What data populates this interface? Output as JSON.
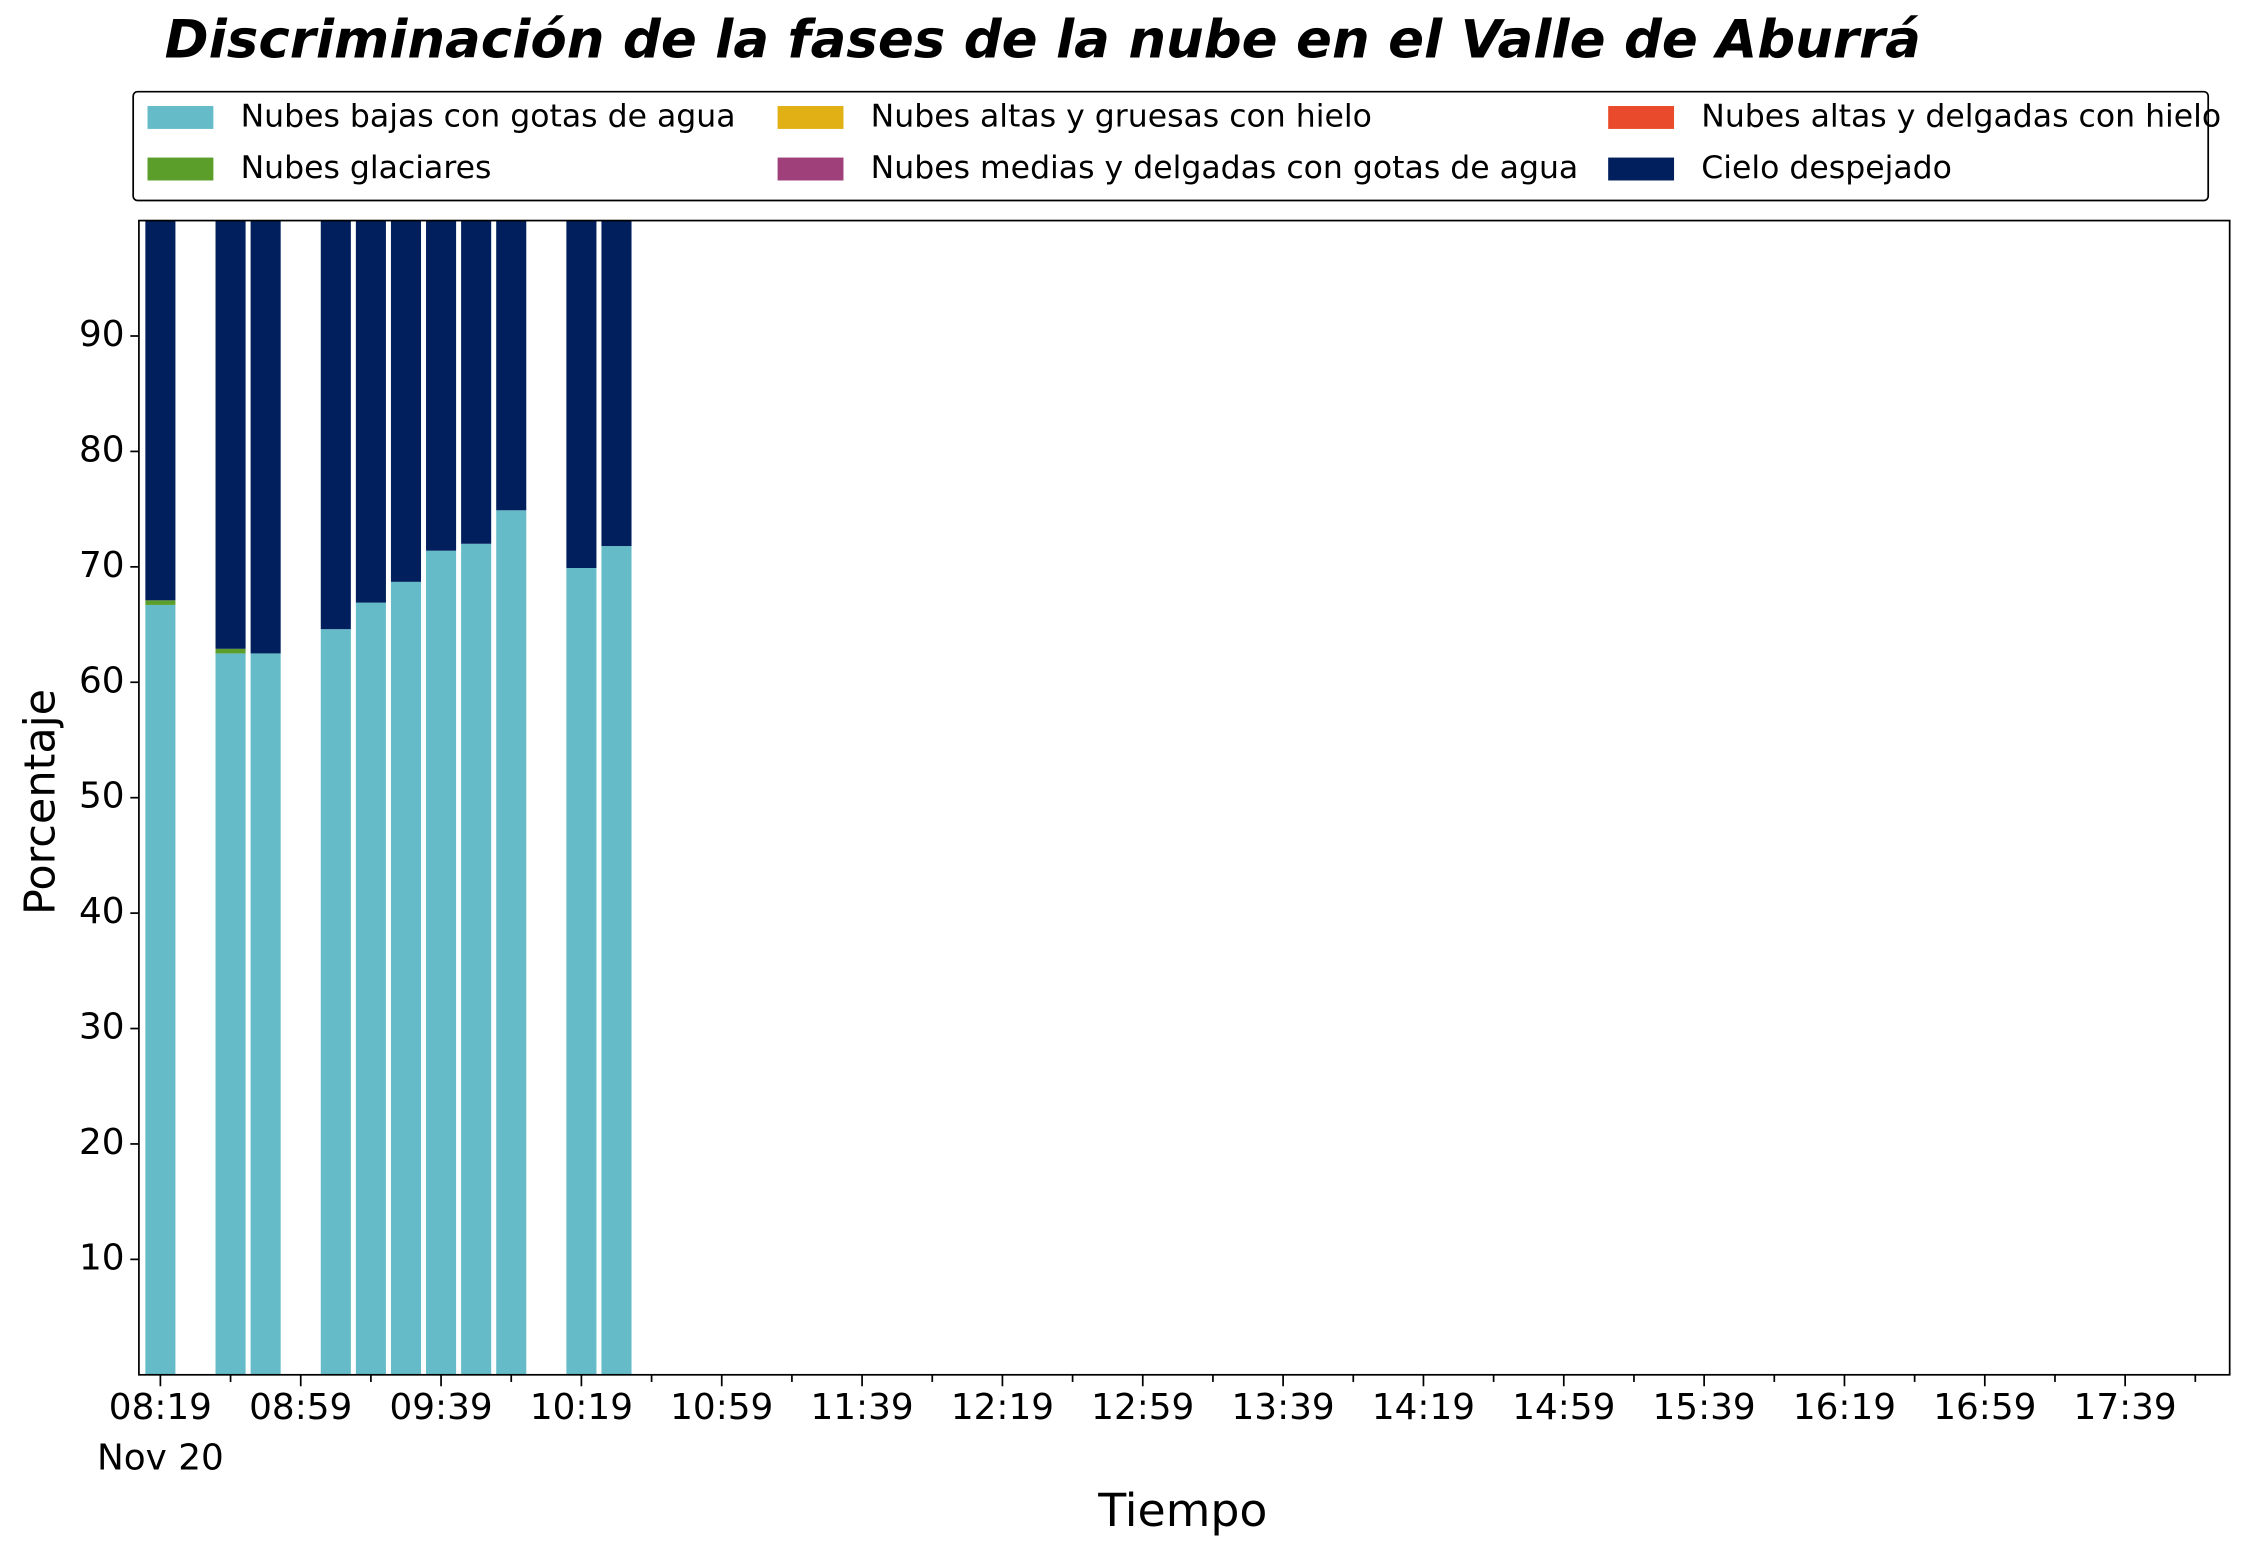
{
  "chart_data": {
    "type": "stacked_bar",
    "title": "Discriminación de la fases de la nube en el Valle de Aburrá",
    "x_label": "Tiempo",
    "y_label": "Porcentaje",
    "x_sublabel": "Nov 20",
    "categories": [
      "08:19",
      null,
      null,
      null,
      "08:59",
      null,
      null,
      null,
      "09:39",
      null,
      null,
      null,
      "10:19",
      null,
      null,
      null,
      "10:59",
      null,
      null,
      null,
      "11:39",
      null,
      null,
      null,
      "12:19",
      null,
      null,
      null,
      "12:59",
      null,
      null,
      null,
      "13:39",
      null,
      null,
      null,
      "14:19",
      null,
      null,
      null,
      "14:59",
      null,
      null,
      null,
      "15:39",
      null,
      null,
      null,
      "16:19",
      null,
      null,
      null,
      "16:59",
      null,
      null,
      null,
      "17:39",
      null,
      null
    ],
    "series": [
      {
        "name": "Nubes bajas con gotas de agua",
        "color": "#65bcc8",
        "values": [
          66.7,
          null,
          62.5,
          62.5,
          null,
          64.6,
          66.9,
          68.7,
          71.4,
          72.0,
          74.9,
          null,
          69.9,
          71.8,
          null,
          null,
          null,
          null,
          null,
          null,
          null,
          null,
          null,
          null,
          null,
          null,
          null,
          null,
          null,
          null,
          null,
          null,
          null,
          null,
          null,
          null,
          null,
          null,
          null,
          null,
          null,
          null,
          null,
          null,
          null,
          null,
          null,
          null,
          null,
          null,
          null,
          null,
          null,
          null,
          null,
          null,
          null,
          null,
          null
        ]
      },
      {
        "name": "Nubes glaciares",
        "color": "#5b9e2a",
        "values": [
          0.4,
          null,
          0.4,
          0,
          null,
          0,
          0,
          0,
          0,
          0,
          0,
          null,
          0,
          0,
          null,
          null,
          null,
          null,
          null,
          null,
          null,
          null,
          null,
          null,
          null,
          null,
          null,
          null,
          null,
          null,
          null,
          null,
          null,
          null,
          null,
          null,
          null,
          null,
          null,
          null,
          null,
          null,
          null,
          null,
          null,
          null,
          null,
          null,
          null,
          null,
          null,
          null,
          null,
          null,
          null,
          null,
          null,
          null,
          null
        ]
      },
      {
        "name": "Nubes altas y gruesas con hielo",
        "color": "#e0b014",
        "values": [
          0,
          null,
          0,
          0,
          null,
          0,
          0,
          0,
          0,
          0,
          0,
          null,
          0,
          0,
          null,
          null,
          null,
          null,
          null,
          null,
          null,
          null,
          null,
          null,
          null,
          null,
          null,
          null,
          null,
          null,
          null,
          null,
          null,
          null,
          null,
          null,
          null,
          null,
          null,
          null,
          null,
          null,
          null,
          null,
          null,
          null,
          null,
          null,
          null,
          null,
          null,
          null,
          null,
          null,
          null,
          null,
          null,
          null,
          null
        ]
      },
      {
        "name": "Nubes medias y delgadas con gotas de agua",
        "color": "#a0407a",
        "values": [
          0,
          null,
          0,
          0,
          null,
          0,
          0,
          0,
          0,
          0,
          0,
          null,
          0,
          0,
          null,
          null,
          null,
          null,
          null,
          null,
          null,
          null,
          null,
          null,
          null,
          null,
          null,
          null,
          null,
          null,
          null,
          null,
          null,
          null,
          null,
          null,
          null,
          null,
          null,
          null,
          null,
          null,
          null,
          null,
          null,
          null,
          null,
          null,
          null,
          null,
          null,
          null,
          null,
          null,
          null,
          null,
          null,
          null,
          null
        ]
      },
      {
        "name": "Nubes altas y delgadas con hielo",
        "color": "#e84a2b",
        "values": [
          0,
          null,
          0,
          0,
          null,
          0,
          0,
          0,
          0,
          0,
          0,
          null,
          0,
          0,
          null,
          null,
          null,
          null,
          null,
          null,
          null,
          null,
          null,
          null,
          null,
          null,
          null,
          null,
          null,
          null,
          null,
          null,
          null,
          null,
          null,
          null,
          null,
          null,
          null,
          null,
          null,
          null,
          null,
          null,
          null,
          null,
          null,
          null,
          null,
          null,
          null,
          null,
          null,
          null,
          null,
          null,
          null,
          null,
          null
        ]
      },
      {
        "name": "Cielo despejado",
        "color": "#001f5c",
        "values": [
          32.9,
          null,
          37.1,
          37.5,
          null,
          35.4,
          33.1,
          31.3,
          28.6,
          28.0,
          25.1,
          null,
          30.1,
          28.2,
          null,
          null,
          null,
          null,
          null,
          null,
          null,
          null,
          null,
          null,
          null,
          null,
          null,
          null,
          null,
          null,
          null,
          null,
          null,
          null,
          null,
          null,
          null,
          null,
          null,
          null,
          null,
          null,
          null,
          null,
          null,
          null,
          null,
          null,
          null,
          null,
          null,
          null,
          null,
          null,
          null,
          null,
          null,
          null,
          null
        ]
      }
    ],
    "ylim": [
      0,
      100
    ],
    "yticks": [
      10,
      20,
      30,
      40,
      50,
      60,
      70,
      80,
      90
    ],
    "legend": "top",
    "grid": false
  }
}
